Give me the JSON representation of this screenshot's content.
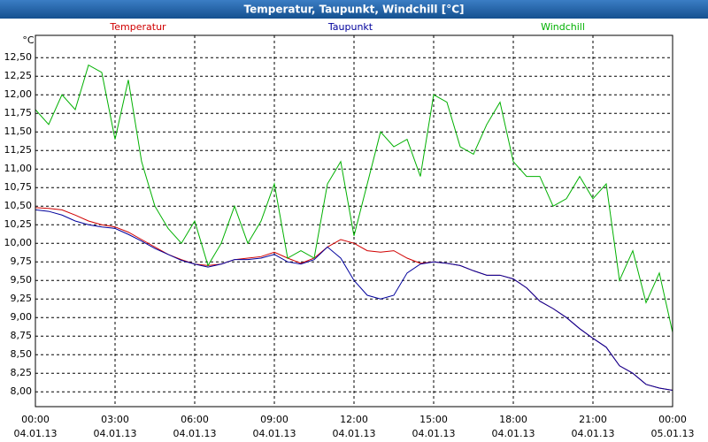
{
  "chart_data": {
    "type": "line",
    "title": "Temperatur, Taupunkt, Windchill [°C]",
    "y_label": "°C",
    "x": [
      0,
      0.5,
      1,
      1.5,
      2,
      2.5,
      3,
      3.5,
      4,
      4.5,
      5,
      5.5,
      6,
      6.5,
      7,
      7.5,
      8,
      8.5,
      9,
      9.5,
      10,
      10.5,
      11,
      11.5,
      12,
      12.5,
      13,
      13.5,
      14,
      14.5,
      15,
      15.5,
      16,
      16.5,
      17,
      17.5,
      18,
      18.5,
      19,
      19.5,
      20,
      20.5,
      21,
      21.5,
      22,
      22.5,
      23,
      23.5,
      24
    ],
    "series": [
      {
        "name": "Temperatur",
        "color": "#d00000",
        "values": [
          10.48,
          10.47,
          10.45,
          10.38,
          10.3,
          10.25,
          10.22,
          10.15,
          10.05,
          9.95,
          9.85,
          9.78,
          9.72,
          9.7,
          9.72,
          9.78,
          9.8,
          9.82,
          9.88,
          9.8,
          9.73,
          9.8,
          9.95,
          10.05,
          10.0,
          9.9,
          9.88,
          9.9,
          9.8,
          9.73,
          9.75,
          9.73,
          9.7,
          9.63,
          9.57,
          9.57,
          9.52,
          9.4,
          9.22,
          9.12,
          9.0,
          8.85,
          8.72,
          8.6,
          8.35,
          8.25,
          8.1,
          8.05,
          8.02
        ]
      },
      {
        "name": "Taupunkt",
        "color": "#00009c",
        "values": [
          10.45,
          10.43,
          10.38,
          10.3,
          10.25,
          10.22,
          10.2,
          10.12,
          10.03,
          9.93,
          9.85,
          9.77,
          9.72,
          9.68,
          9.72,
          9.78,
          9.78,
          9.8,
          9.85,
          9.75,
          9.72,
          9.78,
          9.95,
          9.8,
          9.5,
          9.3,
          9.25,
          9.3,
          9.6,
          9.72,
          9.75,
          9.73,
          9.7,
          9.63,
          9.57,
          9.57,
          9.52,
          9.4,
          9.22,
          9.12,
          9.0,
          8.85,
          8.72,
          8.6,
          8.35,
          8.25,
          8.1,
          8.05,
          8.02
        ]
      },
      {
        "name": "Windchill",
        "color": "#00b000",
        "values": [
          11.8,
          11.6,
          12.0,
          11.8,
          12.4,
          12.3,
          11.4,
          12.2,
          11.1,
          10.5,
          10.2,
          10.0,
          10.3,
          9.7,
          10.0,
          10.5,
          10.0,
          10.3,
          10.8,
          9.8,
          9.9,
          9.8,
          10.8,
          11.1,
          10.1,
          10.8,
          11.5,
          11.3,
          11.4,
          10.9,
          12.0,
          11.9,
          11.3,
          11.2,
          11.6,
          11.9,
          11.1,
          10.9,
          10.9,
          10.5,
          10.6,
          10.9,
          10.6,
          10.8,
          9.5,
          9.9,
          9.2,
          9.6,
          8.8
        ]
      }
    ],
    "xlim": [
      0,
      24
    ],
    "xticks": [
      {
        "value": 0,
        "label": "00:00"
      },
      {
        "value": 3,
        "label": "03:00"
      },
      {
        "value": 6,
        "label": "06:00"
      },
      {
        "value": 9,
        "label": "09:00"
      },
      {
        "value": 12,
        "label": "12:00"
      },
      {
        "value": 15,
        "label": "15:00"
      },
      {
        "value": 18,
        "label": "18:00"
      },
      {
        "value": 21,
        "label": "21:00"
      },
      {
        "value": 24,
        "label": "00:00"
      }
    ],
    "xtick_dates": [
      "04.01.13",
      "04.01.13",
      "04.01.13",
      "04.01.13",
      "04.01.13",
      "04.01.13",
      "04.01.13",
      "04.01.13",
      "05.01.13"
    ],
    "ylim": [
      7.8,
      12.8
    ],
    "yticks": [
      {
        "value": 8,
        "label": "8,00"
      },
      {
        "value": 8.25,
        "label": "8,25"
      },
      {
        "value": 8.5,
        "label": "8,50"
      },
      {
        "value": 8.75,
        "label": "8,75"
      },
      {
        "value": 9,
        "label": "9,00"
      },
      {
        "value": 9.25,
        "label": "9,25"
      },
      {
        "value": 9.5,
        "label": "9,50"
      },
      {
        "value": 9.75,
        "label": "9,75"
      },
      {
        "value": 10,
        "label": "10,00"
      },
      {
        "value": 10.25,
        "label": "10,25"
      },
      {
        "value": 10.5,
        "label": "10,50"
      },
      {
        "value": 10.75,
        "label": "10,75"
      },
      {
        "value": 11,
        "label": "11,00"
      },
      {
        "value": 11.25,
        "label": "11,25"
      },
      {
        "value": 11.5,
        "label": "11,50"
      },
      {
        "value": 11.75,
        "label": "11,75"
      },
      {
        "value": 12,
        "label": "12,00"
      },
      {
        "value": 12.25,
        "label": "12,25"
      },
      {
        "value": 12.5,
        "label": "12,50"
      }
    ],
    "grid": true
  }
}
